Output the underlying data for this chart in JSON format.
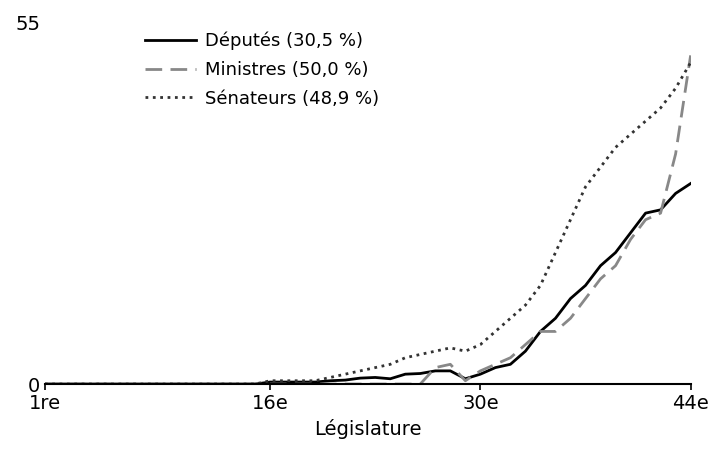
{
  "xlabel": "Législature",
  "ylabel": "",
  "xlim": [
    1,
    44
  ],
  "ylim": [
    0,
    55
  ],
  "yticks": [
    0,
    55
  ],
  "xticks": [
    1,
    16,
    30,
    44
  ],
  "xticklabels": [
    "1re",
    "16e",
    "30e",
    "44e"
  ],
  "legend_labels": [
    "Députés (30,5 %)",
    "Ministres (50,0 %)",
    "Sénateurs (48,9 %)"
  ],
  "deputes": [
    0.0,
    0.0,
    0.0,
    0.0,
    0.0,
    0.0,
    0.0,
    0.0,
    0.0,
    0.0,
    0.0,
    0.0,
    0.0,
    0.0,
    0.0,
    0.3,
    0.3,
    0.3,
    0.3,
    0.5,
    0.6,
    0.9,
    1.0,
    0.8,
    1.5,
    1.6,
    2.0,
    2.0,
    0.8,
    1.5,
    2.5,
    3.0,
    5.0,
    8.0,
    10.0,
    13.0,
    15.0,
    18.0,
    20.0,
    23.0,
    26.0,
    26.5,
    29.0,
    30.5
  ],
  "ministres": [
    0.0,
    0.0,
    0.0,
    0.0,
    0.0,
    0.0,
    0.0,
    0.0,
    0.0,
    0.0,
    0.0,
    0.0,
    0.0,
    0.0,
    0.0,
    0.0,
    0.0,
    0.0,
    0.0,
    0.0,
    0.0,
    0.0,
    0.0,
    0.0,
    0.0,
    0.0,
    2.5,
    3.0,
    0.5,
    2.0,
    3.0,
    4.0,
    6.0,
    8.0,
    8.0,
    10.0,
    13.0,
    16.0,
    18.0,
    22.0,
    25.0,
    26.0,
    35.0,
    50.0
  ],
  "senateurs": [
    0.0,
    0.0,
    0.0,
    0.0,
    0.0,
    0.0,
    0.0,
    0.0,
    0.0,
    0.0,
    0.0,
    0.0,
    0.0,
    0.0,
    0.0,
    0.5,
    0.5,
    0.5,
    0.5,
    1.0,
    1.5,
    2.0,
    2.5,
    3.0,
    4.0,
    4.5,
    5.0,
    5.5,
    5.0,
    6.0,
    8.0,
    10.0,
    12.0,
    15.0,
    20.0,
    25.0,
    30.0,
    33.0,
    36.0,
    38.0,
    40.0,
    42.0,
    45.0,
    48.9
  ],
  "deputes_color": "#000000",
  "ministres_color": "#888888",
  "senateurs_color": "#333333",
  "background_color": "#ffffff",
  "fontsize_ticks": 14,
  "fontsize_xlabel": 14,
  "fontsize_legend": 13
}
